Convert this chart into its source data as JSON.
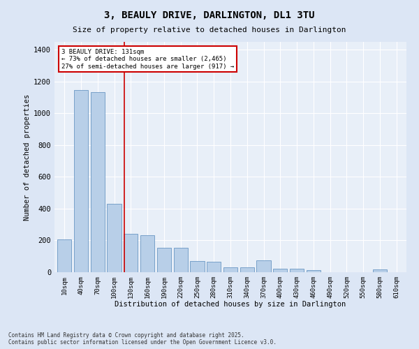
{
  "title": "3, BEAULY DRIVE, DARLINGTON, DL1 3TU",
  "subtitle": "Size of property relative to detached houses in Darlington",
  "xlabel": "Distribution of detached houses by size in Darlington",
  "ylabel": "Number of detached properties",
  "categories": [
    "10sqm",
    "40sqm",
    "70sqm",
    "100sqm",
    "130sqm",
    "160sqm",
    "190sqm",
    "220sqm",
    "250sqm",
    "280sqm",
    "310sqm",
    "340sqm",
    "370sqm",
    "400sqm",
    "430sqm",
    "460sqm",
    "490sqm",
    "520sqm",
    "550sqm",
    "580sqm",
    "610sqm"
  ],
  "values": [
    205,
    1145,
    1135,
    430,
    240,
    235,
    155,
    155,
    70,
    65,
    30,
    30,
    75,
    20,
    20,
    15,
    0,
    0,
    0,
    18,
    0
  ],
  "bar_color": "#b8cfe8",
  "bar_edge_color": "#5588bb",
  "annotation_box_text": "3 BEAULY DRIVE: 131sqm\n← 73% of detached houses are smaller (2,465)\n27% of semi-detached houses are larger (917) →",
  "annotation_box_color": "#ffffff",
  "annotation_box_edge_color": "#cc0000",
  "vline_color": "#cc0000",
  "footnote": "Contains HM Land Registry data © Crown copyright and database right 2025.\nContains public sector information licensed under the Open Government Licence v3.0.",
  "bg_color": "#dce6f5",
  "plot_bg_color": "#e8eff8",
  "grid_color": "#ffffff",
  "ylim": [
    0,
    1450
  ],
  "yticks": [
    0,
    200,
    400,
    600,
    800,
    1000,
    1200,
    1400
  ],
  "vline_xindex": 3.6
}
